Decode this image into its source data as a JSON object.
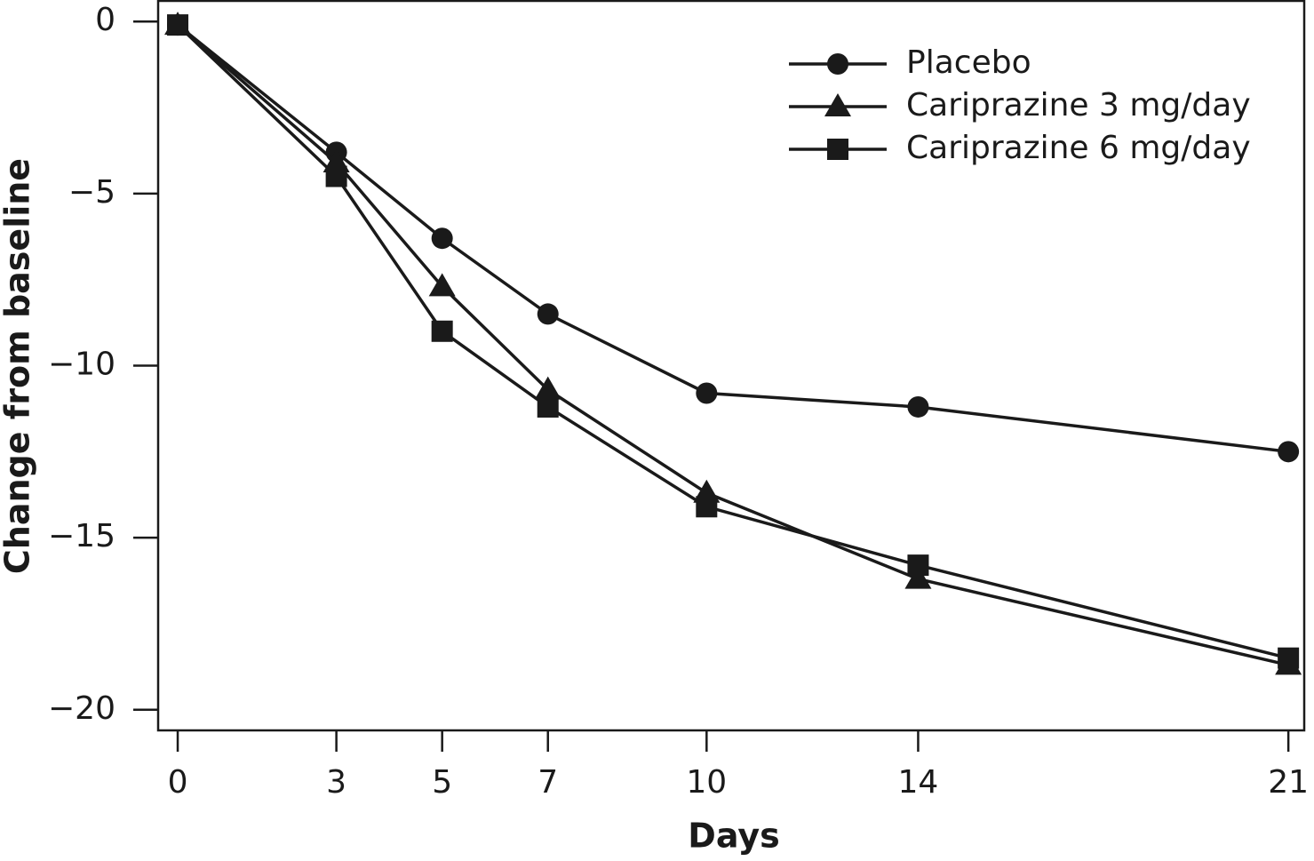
{
  "chart_data": {
    "type": "line",
    "x_label": "Days",
    "y_label": "Change from baseline",
    "x": [
      0,
      3,
      5,
      7,
      10,
      14,
      21
    ],
    "series": [
      {
        "name": "Placebo",
        "color": "#1a1a1a",
        "marker": "circle",
        "values": [
          -0.1,
          -3.8,
          -6.3,
          -8.5,
          -10.8,
          -11.2,
          -12.5
        ]
      },
      {
        "name": "Cariprazine 3 mg/day",
        "color": "#1a1a1a",
        "marker": "triangle",
        "values": [
          -0.1,
          -4.1,
          -7.7,
          -10.7,
          -13.7,
          -16.2,
          -18.7
        ]
      },
      {
        "name": "Cariprazine 6 mg/day",
        "color": "#1a1a1a",
        "marker": "square",
        "values": [
          -0.1,
          -4.5,
          -9.0,
          -11.2,
          -14.1,
          -15.8,
          -18.5
        ]
      }
    ],
    "xlim": [
      -0.37,
      21.3
    ],
    "ylim": [
      -20.6,
      0.6
    ],
    "xticks": [
      0,
      3,
      5,
      7,
      10,
      14,
      21
    ],
    "yticks": [
      0,
      {
        "value": -5,
        "label": "−5"
      },
      {
        "value": -10,
        "label": "−10"
      },
      {
        "value": -15,
        "label": "−15"
      },
      {
        "value": -20,
        "label": "−20"
      }
    ],
    "legend": "upper right",
    "grid": false
  }
}
